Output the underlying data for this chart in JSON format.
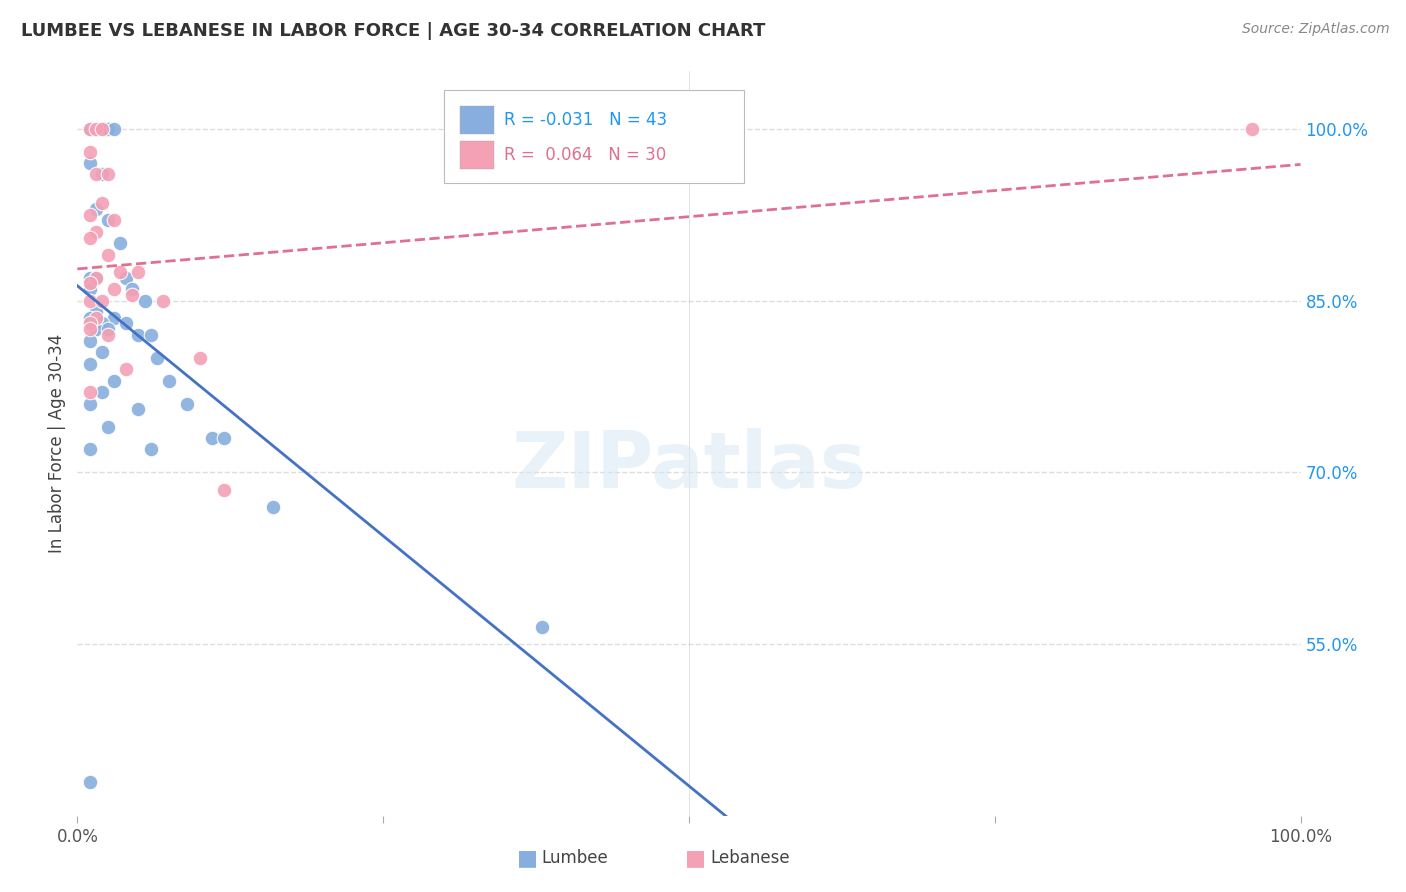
{
  "title": "LUMBEE VS LEBANESE IN LABOR FORCE | AGE 30-34 CORRELATION CHART",
  "source": "Source: ZipAtlas.com",
  "ylabel": "In Labor Force | Age 30-34",
  "legend_lumbee": "Lumbee",
  "legend_lebanese": "Lebanese",
  "lumbee_R": -0.031,
  "lumbee_N": 43,
  "lebanese_R": 0.064,
  "lebanese_N": 30,
  "lumbee_color": "#87AEDE",
  "lebanese_color": "#F4A0B5",
  "lumbee_line_color": "#4472C4",
  "lebanese_line_color": "#E07090",
  "watermark_text": "ZIPatlas",
  "lumbee_points": [
    [
      1.0,
      100.0
    ],
    [
      1.5,
      100.0
    ],
    [
      2.0,
      100.0
    ],
    [
      2.5,
      100.0
    ],
    [
      3.0,
      100.0
    ],
    [
      1.0,
      97.0
    ],
    [
      2.0,
      96.0
    ],
    [
      1.5,
      93.0
    ],
    [
      2.5,
      92.0
    ],
    [
      3.5,
      90.0
    ],
    [
      1.0,
      87.0
    ],
    [
      1.5,
      87.0
    ],
    [
      4.0,
      87.0
    ],
    [
      1.0,
      86.0
    ],
    [
      4.5,
      86.0
    ],
    [
      5.5,
      85.0
    ],
    [
      1.5,
      84.0
    ],
    [
      1.0,
      83.5
    ],
    [
      3.0,
      83.5
    ],
    [
      2.0,
      83.0
    ],
    [
      4.0,
      83.0
    ],
    [
      1.5,
      82.5
    ],
    [
      2.5,
      82.5
    ],
    [
      5.0,
      82.0
    ],
    [
      6.0,
      82.0
    ],
    [
      1.0,
      81.5
    ],
    [
      2.0,
      80.5
    ],
    [
      6.5,
      80.0
    ],
    [
      1.0,
      79.5
    ],
    [
      3.0,
      78.0
    ],
    [
      7.5,
      78.0
    ],
    [
      2.0,
      77.0
    ],
    [
      1.0,
      76.0
    ],
    [
      9.0,
      76.0
    ],
    [
      5.0,
      75.5
    ],
    [
      2.5,
      74.0
    ],
    [
      11.0,
      73.0
    ],
    [
      12.0,
      73.0
    ],
    [
      1.0,
      72.0
    ],
    [
      6.0,
      72.0
    ],
    [
      16.0,
      67.0
    ],
    [
      38.0,
      56.5
    ],
    [
      1.0,
      43.0
    ]
  ],
  "lebanese_points": [
    [
      1.0,
      100.0
    ],
    [
      1.5,
      100.0
    ],
    [
      2.0,
      100.0
    ],
    [
      1.0,
      98.0
    ],
    [
      1.5,
      96.0
    ],
    [
      2.5,
      96.0
    ],
    [
      2.0,
      93.5
    ],
    [
      1.0,
      92.5
    ],
    [
      3.0,
      92.0
    ],
    [
      1.5,
      91.0
    ],
    [
      1.0,
      90.5
    ],
    [
      2.5,
      89.0
    ],
    [
      3.5,
      87.5
    ],
    [
      5.0,
      87.5
    ],
    [
      1.5,
      87.0
    ],
    [
      1.0,
      86.5
    ],
    [
      3.0,
      86.0
    ],
    [
      4.5,
      85.5
    ],
    [
      1.0,
      85.0
    ],
    [
      2.0,
      85.0
    ],
    [
      7.0,
      85.0
    ],
    [
      1.5,
      83.5
    ],
    [
      1.0,
      83.0
    ],
    [
      1.0,
      82.5
    ],
    [
      2.5,
      82.0
    ],
    [
      10.0,
      80.0
    ],
    [
      4.0,
      79.0
    ],
    [
      1.0,
      77.0
    ],
    [
      12.0,
      68.5
    ],
    [
      96.0,
      100.0
    ]
  ],
  "xlim": [
    0.0,
    100.0
  ],
  "ylim": [
    40.0,
    105.0
  ],
  "yticks": [
    55.0,
    70.0,
    85.0,
    100.0
  ],
  "ytick_labels": [
    "55.0%",
    "70.0%",
    "85.0%",
    "100.0%"
  ],
  "bg_color": "#FFFFFF",
  "grid_color": "#DDDDDD"
}
